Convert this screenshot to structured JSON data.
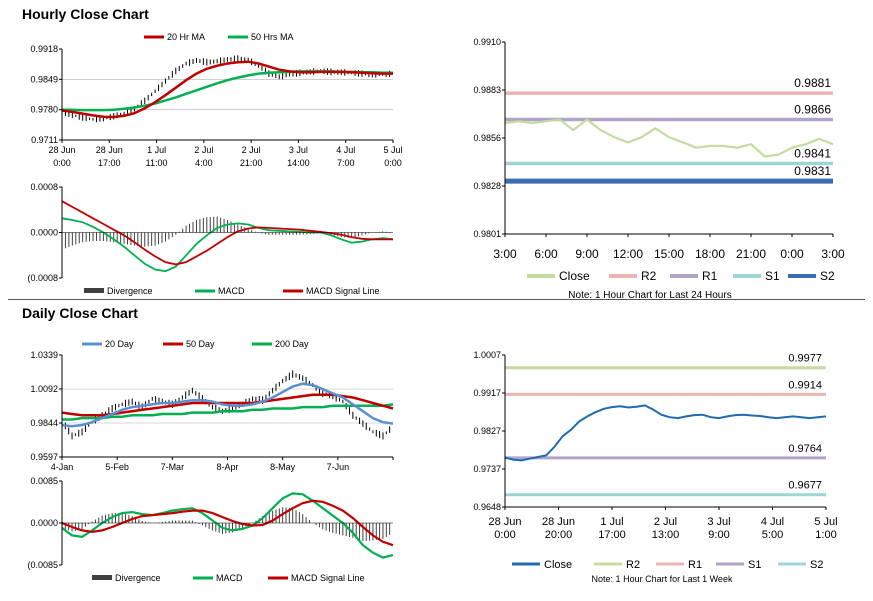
{
  "sections": {
    "hourly_title": "Hourly Close Chart",
    "daily_title": "Daily Close Chart"
  },
  "colors": {
    "ma_short": "#c00000",
    "ma_long": "#00b050",
    "ma_20day": "#5b8fd0",
    "divergence": "#404040",
    "close_line_hourly": "#c4dca0",
    "close_line_daily": "#1f6ab0",
    "r2": "#c4dca0",
    "r2_hourly": "#e8b4b4",
    "r1": "#b0a4c8",
    "s1": "#9cd4d8",
    "s2": "#3a6cb0"
  },
  "chart_data": [
    {
      "id": "hourly_price",
      "type": "line",
      "title": "",
      "legend": [
        "20 Hr MA",
        "50 Hrs MA"
      ],
      "yticks": [
        "0.9918",
        "0.9849",
        "0.9780",
        "0.9711"
      ],
      "ylim": [
        0.9711,
        0.9918
      ],
      "xticks": [
        [
          "28 Jun",
          "0:00"
        ],
        [
          "28 Jun",
          "17:00"
        ],
        [
          "1 Jul",
          "11:00"
        ],
        [
          "2 Jul",
          "4:00"
        ],
        [
          "2 Jul",
          "21:00"
        ],
        [
          "3 Jul",
          "14:00"
        ],
        [
          "4 Jul",
          "7:00"
        ],
        [
          "5 Jul",
          "0:00"
        ]
      ],
      "price": [
        0.9775,
        0.9768,
        0.9762,
        0.9758,
        0.976,
        0.9765,
        0.9772,
        0.9782,
        0.98,
        0.9822,
        0.9845,
        0.9868,
        0.9885,
        0.9892,
        0.9888,
        0.989,
        0.9894,
        0.9896,
        0.9893,
        0.988,
        0.9862,
        0.9855,
        0.986,
        0.9864,
        0.9866,
        0.9868,
        0.9866,
        0.9865,
        0.9864,
        0.9862,
        0.986,
        0.986,
        0.9862
      ],
      "ma20": [
        0.9778,
        0.9775,
        0.9771,
        0.9767,
        0.9764,
        0.9763,
        0.9766,
        0.9772,
        0.9783,
        0.9797,
        0.9813,
        0.983,
        0.9847,
        0.9862,
        0.9873,
        0.988,
        0.9885,
        0.9888,
        0.9889,
        0.9885,
        0.9878,
        0.9871,
        0.9867,
        0.9865,
        0.9865,
        0.9866,
        0.9866,
        0.9866,
        0.9865,
        0.9864,
        0.9863,
        0.9862,
        0.9862
      ],
      "ma50": [
        0.978,
        0.978,
        0.9779,
        0.9779,
        0.9779,
        0.978,
        0.9782,
        0.9785,
        0.9789,
        0.9794,
        0.9801,
        0.9808,
        0.9816,
        0.9824,
        0.9832,
        0.984,
        0.9847,
        0.9853,
        0.9858,
        0.9862,
        0.9864,
        0.9865,
        0.9866,
        0.9867,
        0.9867,
        0.9867,
        0.9867,
        0.9866,
        0.9866,
        0.9865,
        0.9865,
        0.9864,
        0.9864
      ]
    },
    {
      "id": "hourly_macd",
      "type": "line",
      "legend": [
        "Divergence",
        "MACD",
        "MACD Signal Line"
      ],
      "yticks": [
        "0.0008",
        "0.0000",
        "(0.0008"
      ],
      "ylim": [
        -0.0008,
        0.0008
      ],
      "macd": [
        0.00025,
        0.00022,
        0.00018,
        0.0001,
        0.0,
        -0.00012,
        -0.00025,
        -0.0004,
        -0.00055,
        -0.00065,
        -0.00068,
        -0.0006,
        -0.0004,
        -0.0002,
        -5e-05,
        8e-05,
        0.00014,
        0.00016,
        0.00014,
        8e-05,
        4e-05,
        3e-05,
        2e-05,
        1e-05,
        0.0,
        0.0,
        -5e-05,
        -0.00012,
        -0.00018,
        -0.00016,
        -0.00012,
        -0.0001,
        -0.00012
      ],
      "signal": [
        0.00055,
        0.00045,
        0.00035,
        0.00025,
        0.00015,
        5e-05,
        -5e-05,
        -0.00017,
        -0.0003,
        -0.00042,
        -0.00052,
        -0.00056,
        -0.00052,
        -0.00042,
        -0.00032,
        -0.0002,
        -8e-05,
        2e-05,
        7e-05,
        9e-05,
        8e-05,
        7e-05,
        6e-05,
        5e-05,
        3e-05,
        1e-05,
        -1e-05,
        -4e-05,
        -8e-05,
        -0.00011,
        -0.00012,
        -0.00012,
        -0.00012
      ]
    },
    {
      "id": "hourly_levels",
      "type": "line",
      "yticks": [
        "0.9910",
        "0.9883",
        "0.9856",
        "0.9828",
        "0.9801"
      ],
      "ylim": [
        0.9801,
        0.991
      ],
      "xticks": [
        "3:00",
        "6:00",
        "9:00",
        "12:00",
        "15:00",
        "18:00",
        "21:00",
        "0:00",
        "3:00"
      ],
      "close": [
        0.9864,
        0.9865,
        0.9864,
        0.9865,
        0.9866,
        0.986,
        0.9866,
        0.986,
        0.9856,
        0.9853,
        0.9856,
        0.9861,
        0.9856,
        0.9853,
        0.985,
        0.9851,
        0.9851,
        0.985,
        0.9852,
        0.9845,
        0.9846,
        0.985,
        0.9852,
        0.9855,
        0.9852
      ],
      "levels": [
        {
          "name": "R2",
          "value": 0.9881,
          "label": "0.9881"
        },
        {
          "name": "R1",
          "value": 0.9866,
          "label": "0.9866"
        },
        {
          "name": "S1",
          "value": 0.9841,
          "label": "0.9841"
        },
        {
          "name": "S2",
          "value": 0.9831,
          "label": "0.9831"
        }
      ],
      "legend": [
        "Close",
        "R2",
        "R1",
        "S1",
        "S2"
      ],
      "note": "Note: 1 Hour Chart for Last 24 Hours"
    },
    {
      "id": "daily_price",
      "type": "line",
      "legend": [
        "20 Day",
        "50 Day",
        "200 Day"
      ],
      "yticks": [
        "1.0339",
        "1.0092",
        "0.9844",
        "0.9597"
      ],
      "ylim": [
        0.9597,
        1.0339
      ],
      "xticks": [
        "4-Jan",
        "5-Feb",
        "7-Mar",
        "8-Apr",
        "8-May",
        "7-Jun"
      ],
      "price": [
        0.986,
        0.975,
        0.978,
        0.985,
        0.99,
        0.995,
        0.998,
        1.0,
        0.996,
        1.002,
        1.0,
        0.998,
        1.003,
        1.008,
        1.002,
        0.996,
        0.993,
        0.995,
        0.998,
        1.002,
        1.001,
        1.008,
        1.015,
        1.02,
        1.017,
        1.012,
        1.006,
        1.004,
        1.0,
        0.99,
        0.984,
        0.978,
        0.975,
        0.982
      ],
      "ma20": [
        0.983,
        0.982,
        0.983,
        0.985,
        0.988,
        0.991,
        0.994,
        0.996,
        0.997,
        0.998,
        0.999,
        0.999,
        1.0,
        1.001,
        1.001,
        1.0,
        0.998,
        0.997,
        0.997,
        0.998,
        1.0,
        1.003,
        1.007,
        1.011,
        1.013,
        1.012,
        1.009,
        1.006,
        1.003,
        0.998,
        0.993,
        0.988,
        0.985,
        0.984
      ],
      "ma50": [
        0.992,
        0.991,
        0.99,
        0.99,
        0.99,
        0.991,
        0.992,
        0.993,
        0.994,
        0.995,
        0.996,
        0.997,
        0.998,
        0.999,
        0.999,
        0.999,
        0.999,
        0.999,
        0.999,
        0.999,
        1.0,
        1.001,
        1.002,
        1.003,
        1.004,
        1.005,
        1.005,
        1.005,
        1.004,
        1.003,
        1.001,
        0.999,
        0.997,
        0.995
      ],
      "ma200": [
        0.987,
        0.987,
        0.988,
        0.988,
        0.988,
        0.989,
        0.989,
        0.99,
        0.99,
        0.99,
        0.991,
        0.991,
        0.991,
        0.992,
        0.992,
        0.992,
        0.993,
        0.993,
        0.993,
        0.994,
        0.994,
        0.995,
        0.995,
        0.995,
        0.996,
        0.996,
        0.996,
        0.997,
        0.997,
        0.997,
        0.997,
        0.997,
        0.997,
        0.998
      ]
    },
    {
      "id": "daily_macd",
      "type": "line",
      "legend": [
        "Divergence",
        "MACD",
        "MACD Signal Line"
      ],
      "yticks": [
        "0.0085",
        "0.0000",
        "(0.0085"
      ],
      "ylim": [
        -0.0085,
        0.0085
      ],
      "macd": [
        -0.001,
        -0.0025,
        -0.0028,
        -0.0015,
        0.0,
        0.0012,
        0.002,
        0.0022,
        0.0018,
        0.0016,
        0.002,
        0.0025,
        0.0028,
        0.003,
        0.002,
        0.0005,
        -0.001,
        -0.0015,
        -0.0012,
        -0.0005,
        0.001,
        0.003,
        0.005,
        0.006,
        0.0058,
        0.0045,
        0.003,
        0.0015,
        0.0,
        -0.002,
        -0.0045,
        -0.006,
        -0.007,
        -0.0065
      ],
      "signal": [
        0.0,
        -0.0008,
        -0.0015,
        -0.0018,
        -0.0015,
        -0.0008,
        0.0,
        0.0008,
        0.0014,
        0.0016,
        0.0018,
        0.002,
        0.0023,
        0.0025,
        0.0025,
        0.002,
        0.0012,
        0.0004,
        -0.0002,
        -0.0005,
        -0.0004,
        0.0005,
        0.0018,
        0.003,
        0.004,
        0.0045,
        0.0043,
        0.0035,
        0.0025,
        0.001,
        -0.0008,
        -0.0025,
        -0.0038,
        -0.0045
      ]
    },
    {
      "id": "daily_levels",
      "type": "line",
      "yticks": [
        "1.0007",
        "0.9917",
        "0.9827",
        "0.9737",
        "0.9648"
      ],
      "ylim": [
        0.9648,
        1.0007
      ],
      "xticks": [
        [
          "28 Jun",
          "0:00"
        ],
        [
          "28 Jun",
          "20:00"
        ],
        [
          "1 Jul",
          "17:00"
        ],
        [
          "2 Jul",
          "13:00"
        ],
        [
          "3 Jul",
          "9:00"
        ],
        [
          "4 Jul",
          "5:00"
        ],
        [
          "5 Jul",
          "1:00"
        ]
      ],
      "close": [
        0.9765,
        0.976,
        0.9758,
        0.9762,
        0.9766,
        0.977,
        0.979,
        0.9815,
        0.983,
        0.985,
        0.9862,
        0.9872,
        0.988,
        0.9884,
        0.9886,
        0.9883,
        0.9885,
        0.9888,
        0.9878,
        0.9866,
        0.986,
        0.9858,
        0.9862,
        0.9865,
        0.9866,
        0.986,
        0.9858,
        0.9862,
        0.9865,
        0.9866,
        0.9864,
        0.9863,
        0.986,
        0.9858,
        0.986,
        0.9862,
        0.986,
        0.9858,
        0.986,
        0.9862
      ],
      "levels": [
        {
          "name": "R2",
          "value": 0.9977,
          "label": "0.9977"
        },
        {
          "name": "R1",
          "value": 0.9914,
          "label": "0.9914"
        },
        {
          "name": "S1",
          "value": 0.9764,
          "label": "0.9764"
        },
        {
          "name": "S2",
          "value": 0.9677,
          "label": "0.9677"
        }
      ],
      "legend": [
        "Close",
        "R2",
        "R1",
        "S1",
        "S2"
      ],
      "note": "Note: 1 Hour Chart for Last 1 Week"
    }
  ]
}
